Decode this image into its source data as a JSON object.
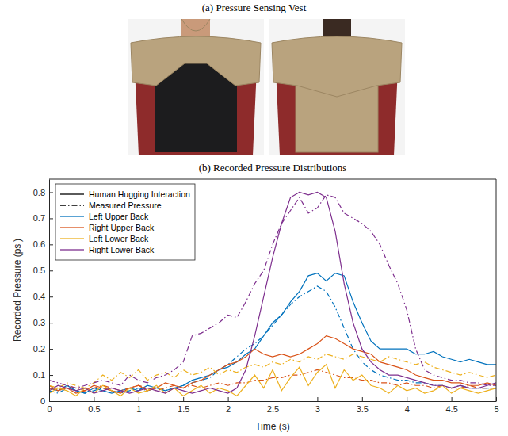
{
  "photo_panel": {
    "title": "(a) Pressure Sensing Vest"
  },
  "chart_data": {
    "type": "line",
    "title": "(b) Recorded Pressure Distributions",
    "x_label": "Time (s)",
    "y_label": "Recorded Pressure (psi)",
    "xlim": [
      0,
      5
    ],
    "xticks": [
      0,
      0.5,
      1,
      1.5,
      2,
      2.5,
      3,
      3.5,
      4,
      4.5,
      5
    ],
    "ylim": [
      0,
      0.85
    ],
    "yticks": [
      0,
      0.1,
      0.2,
      0.3,
      0.4,
      0.5,
      0.6,
      0.7,
      0.8
    ],
    "grid": false,
    "legend": "upper left",
    "styles": [
      {
        "name": "Human Hugging Interaction",
        "line_style": "solid"
      },
      {
        "name": "Measured Pressure",
        "line_style": "dashdot"
      }
    ],
    "x": [
      0,
      0.1,
      0.2,
      0.3,
      0.4,
      0.5,
      0.6,
      0.7,
      0.8,
      0.9,
      1,
      1.1,
      1.2,
      1.3,
      1.4,
      1.5,
      1.6,
      1.7,
      1.8,
      1.9,
      2,
      2.1,
      2.2,
      2.3,
      2.4,
      2.5,
      2.6,
      2.7,
      2.8,
      2.9,
      3,
      3.1,
      3.2,
      3.3,
      3.4,
      3.5,
      3.6,
      3.7,
      3.8,
      3.9,
      4,
      4.1,
      4.2,
      4.3,
      4.4,
      4.5,
      4.6,
      4.7,
      4.8,
      4.9,
      5
    ],
    "series": [
      {
        "name": "Left Upper Back",
        "color": "#0072bd",
        "line_style": "solid",
        "values": [
          0.05,
          0.04,
          0.06,
          0.04,
          0.03,
          0.05,
          0.04,
          0.03,
          0.04,
          0.05,
          0.04,
          0.06,
          0.05,
          0.04,
          0.05,
          0.06,
          0.08,
          0.09,
          0.1,
          0.12,
          0.13,
          0.15,
          0.18,
          0.2,
          0.25,
          0.3,
          0.33,
          0.38,
          0.42,
          0.48,
          0.49,
          0.46,
          0.49,
          0.48,
          0.38,
          0.3,
          0.23,
          0.2,
          0.2,
          0.2,
          0.2,
          0.18,
          0.18,
          0.19,
          0.17,
          0.16,
          0.15,
          0.16,
          0.15,
          0.14,
          0.14
        ]
      },
      {
        "name": "Left Upper Back",
        "color": "#0072bd",
        "line_style": "dashdot",
        "values": [
          0.04,
          0.03,
          0.05,
          0.04,
          0.03,
          0.04,
          0.05,
          0.04,
          0.03,
          0.04,
          0.05,
          0.04,
          0.05,
          0.04,
          0.05,
          0.06,
          0.07,
          0.08,
          0.09,
          0.12,
          0.14,
          0.17,
          0.2,
          0.22,
          0.25,
          0.29,
          0.33,
          0.37,
          0.4,
          0.42,
          0.44,
          0.42,
          0.36,
          0.28,
          0.2,
          0.15,
          0.12,
          0.1,
          0.09,
          0.08,
          0.08,
          0.07,
          0.07,
          0.06,
          0.06,
          0.05,
          0.06,
          0.05,
          0.05,
          0.05,
          0.05
        ]
      },
      {
        "name": "Right Upper Back",
        "color": "#d95319",
        "line_style": "solid",
        "values": [
          0.06,
          0.04,
          0.05,
          0.03,
          0.04,
          0.06,
          0.05,
          0.04,
          0.03,
          0.05,
          0.06,
          0.04,
          0.05,
          0.07,
          0.06,
          0.05,
          0.07,
          0.08,
          0.1,
          0.12,
          0.14,
          0.15,
          0.17,
          0.2,
          0.18,
          0.17,
          0.18,
          0.17,
          0.18,
          0.2,
          0.22,
          0.25,
          0.24,
          0.22,
          0.2,
          0.19,
          0.18,
          0.15,
          0.14,
          0.13,
          0.12,
          0.1,
          0.09,
          0.08,
          0.08,
          0.07,
          0.07,
          0.06,
          0.06,
          0.07,
          0.06
        ]
      },
      {
        "name": "Right Upper Back",
        "color": "#d95319",
        "line_style": "dashdot",
        "values": [
          0.05,
          0.04,
          0.06,
          0.05,
          0.04,
          0.05,
          0.06,
          0.05,
          0.04,
          0.05,
          0.06,
          0.05,
          0.04,
          0.05,
          0.06,
          0.05,
          0.06,
          0.05,
          0.06,
          0.07,
          0.06,
          0.07,
          0.07,
          0.08,
          0.08,
          0.09,
          0.09,
          0.1,
          0.1,
          0.11,
          0.12,
          0.11,
          0.1,
          0.09,
          0.09,
          0.08,
          0.08,
          0.07,
          0.07,
          0.06,
          0.07,
          0.06,
          0.06,
          0.05,
          0.06,
          0.05,
          0.05,
          0.06,
          0.05,
          0.05,
          0.05
        ]
      },
      {
        "name": "Left Lower Back",
        "color": "#edb120",
        "line_style": "solid",
        "values": [
          0.03,
          0.05,
          0.04,
          0.02,
          0.05,
          0.03,
          0.06,
          0.04,
          0.02,
          0.05,
          0.03,
          0.04,
          0.06,
          0.03,
          0.05,
          0.02,
          0.04,
          0.06,
          0.03,
          0.05,
          0.04,
          0.02,
          0.06,
          0.1,
          0.05,
          0.12,
          0.04,
          0.09,
          0.13,
          0.06,
          0.11,
          0.14,
          0.05,
          0.12,
          0.08,
          0.1,
          0.06,
          0.05,
          0.03,
          0.06,
          0.04,
          0.05,
          0.03,
          0.04,
          0.06,
          0.03,
          0.05,
          0.04,
          0.03,
          0.04,
          0.05
        ]
      },
      {
        "name": "Left Lower Back",
        "color": "#edb120",
        "line_style": "dashdot",
        "values": [
          0.06,
          0.05,
          0.07,
          0.06,
          0.05,
          0.07,
          0.1,
          0.08,
          0.11,
          0.09,
          0.12,
          0.08,
          0.1,
          0.11,
          0.09,
          0.12,
          0.1,
          0.11,
          0.13,
          0.1,
          0.12,
          0.11,
          0.13,
          0.14,
          0.13,
          0.15,
          0.14,
          0.16,
          0.15,
          0.17,
          0.16,
          0.18,
          0.17,
          0.16,
          0.18,
          0.17,
          0.16,
          0.15,
          0.17,
          0.16,
          0.15,
          0.14,
          0.15,
          0.13,
          0.12,
          0.11,
          0.1,
          0.11,
          0.1,
          0.09,
          0.1
        ]
      },
      {
        "name": "Right Lower Back",
        "color": "#7e2f8e",
        "line_style": "solid",
        "values": [
          0.04,
          0.06,
          0.05,
          0.04,
          0.05,
          0.03,
          0.04,
          0.05,
          0.04,
          0.03,
          0.04,
          0.05,
          0.04,
          0.03,
          0.05,
          0.04,
          0.03,
          0.04,
          0.05,
          0.04,
          0.03,
          0.05,
          0.12,
          0.25,
          0.4,
          0.55,
          0.68,
          0.78,
          0.8,
          0.79,
          0.8,
          0.78,
          0.65,
          0.45,
          0.3,
          0.2,
          0.15,
          0.12,
          0.1,
          0.1,
          0.09,
          0.08,
          0.07,
          0.06,
          0.06,
          0.05,
          0.06,
          0.05,
          0.05,
          0.06,
          0.07
        ]
      },
      {
        "name": "Right Lower Back",
        "color": "#7e2f8e",
        "line_style": "dashdot",
        "values": [
          0.08,
          0.07,
          0.06,
          0.05,
          0.06,
          0.07,
          0.08,
          0.07,
          0.06,
          0.1,
          0.08,
          0.07,
          0.09,
          0.1,
          0.12,
          0.15,
          0.25,
          0.26,
          0.28,
          0.3,
          0.33,
          0.32,
          0.38,
          0.45,
          0.5,
          0.6,
          0.68,
          0.73,
          0.78,
          0.72,
          0.74,
          0.79,
          0.78,
          0.72,
          0.7,
          0.68,
          0.65,
          0.6,
          0.52,
          0.45,
          0.35,
          0.2,
          0.12,
          0.1,
          0.09,
          0.08,
          0.08,
          0.07,
          0.07,
          0.06,
          0.06
        ]
      }
    ]
  }
}
